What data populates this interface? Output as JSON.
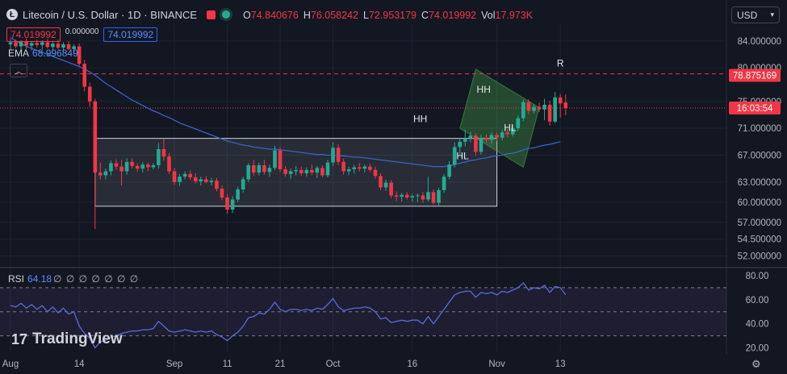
{
  "header": {
    "title": "Litecoin / U.S. Dollar · 1D · BINANCE",
    "ohlc": [
      {
        "key": "O",
        "value": "74.840676"
      },
      {
        "key": "H",
        "value": "76.058242"
      },
      {
        "key": "L",
        "value": "72.953179"
      },
      {
        "key": "C",
        "value": "74.019992"
      },
      {
        "key": "Vol",
        "value": "17.973K"
      }
    ],
    "bid": "74.019992",
    "spread": "0.000000",
    "ask": "74.019992"
  },
  "ema": {
    "label": "EMA",
    "value": "68.996849"
  },
  "rsi": {
    "label": "RSI",
    "value": "64.18",
    "nulls": "∅ ∅ ∅ ∅ ∅ ∅ ∅"
  },
  "currency": "USD",
  "brand": "TradingView",
  "colors": {
    "up": "#22ab94",
    "down": "#f23645",
    "ema": "#3a62c9",
    "rsi": "#5b6bd6",
    "background": "#131722"
  },
  "chart_data": {
    "type": "candlestick",
    "symbol": "LTCUSD",
    "ylim": [
      50.5,
      86.5
    ],
    "y_ticks": [
      "84.000000",
      "80.000000",
      "75.000000",
      "71.000000",
      "67.000000",
      "63.000000",
      "60.000000",
      "57.000000",
      "54.500000",
      "52.000000"
    ],
    "x_ticks": [
      {
        "label": "Aug",
        "index": 0
      },
      {
        "label": "14",
        "index": 13
      },
      {
        "label": "Sep",
        "index": 31
      },
      {
        "label": "11",
        "index": 41
      },
      {
        "label": "21",
        "index": 51
      },
      {
        "label": "Oct",
        "index": 61
      },
      {
        "label": "16",
        "index": 76
      },
      {
        "label": "Nov",
        "index": 92
      },
      {
        "label": "13",
        "index": 104
      }
    ],
    "candles": [
      {
        "o": 83.5,
        "h": 84.3,
        "l": 82.6,
        "c": 83.8
      },
      {
        "o": 83.8,
        "h": 84.2,
        "l": 82.9,
        "c": 83.2
      },
      {
        "o": 83.2,
        "h": 84.1,
        "l": 82.7,
        "c": 83.9
      },
      {
        "o": 83.9,
        "h": 84.4,
        "l": 82.8,
        "c": 83.3
      },
      {
        "o": 83.3,
        "h": 84.0,
        "l": 82.6,
        "c": 83.7
      },
      {
        "o": 83.7,
        "h": 84.2,
        "l": 83.0,
        "c": 83.4
      },
      {
        "o": 83.4,
        "h": 84.1,
        "l": 82.7,
        "c": 83.8
      },
      {
        "o": 83.8,
        "h": 84.3,
        "l": 82.9,
        "c": 83.1
      },
      {
        "o": 83.1,
        "h": 83.9,
        "l": 82.5,
        "c": 83.6
      },
      {
        "o": 83.6,
        "h": 84.2,
        "l": 82.8,
        "c": 83.0
      },
      {
        "o": 83.0,
        "h": 83.8,
        "l": 82.4,
        "c": 83.5
      },
      {
        "o": 83.5,
        "h": 84.0,
        "l": 82.6,
        "c": 82.8
      },
      {
        "o": 82.8,
        "h": 83.5,
        "l": 82.0,
        "c": 83.2
      },
      {
        "o": 83.2,
        "h": 83.6,
        "l": 80.3,
        "c": 80.6
      },
      {
        "o": 80.6,
        "h": 81.2,
        "l": 76.5,
        "c": 77.2
      },
      {
        "o": 77.2,
        "h": 77.8,
        "l": 74.2,
        "c": 75.0
      },
      {
        "o": 75.0,
        "h": 75.4,
        "l": 56.0,
        "c": 64.4
      },
      {
        "o": 64.4,
        "h": 65.9,
        "l": 63.4,
        "c": 64.0
      },
      {
        "o": 64.0,
        "h": 65.0,
        "l": 63.4,
        "c": 64.6
      },
      {
        "o": 64.6,
        "h": 66.2,
        "l": 64.0,
        "c": 65.8
      },
      {
        "o": 65.8,
        "h": 66.4,
        "l": 64.8,
        "c": 65.3
      },
      {
        "o": 65.3,
        "h": 66.3,
        "l": 62.5,
        "c": 64.6
      },
      {
        "o": 64.6,
        "h": 66.5,
        "l": 64.1,
        "c": 66.0
      },
      {
        "o": 66.0,
        "h": 66.5,
        "l": 65.0,
        "c": 65.4
      },
      {
        "o": 65.4,
        "h": 65.8,
        "l": 64.5,
        "c": 65.0
      },
      {
        "o": 65.0,
        "h": 66.0,
        "l": 64.4,
        "c": 65.6
      },
      {
        "o": 65.6,
        "h": 65.9,
        "l": 64.6,
        "c": 65.2
      },
      {
        "o": 65.2,
        "h": 65.8,
        "l": 64.9,
        "c": 65.5
      },
      {
        "o": 65.5,
        "h": 68.8,
        "l": 65.0,
        "c": 67.9
      },
      {
        "o": 67.9,
        "h": 69.4,
        "l": 66.2,
        "c": 66.8
      },
      {
        "o": 66.8,
        "h": 67.3,
        "l": 64.2,
        "c": 64.6
      },
      {
        "o": 64.6,
        "h": 65.1,
        "l": 62.6,
        "c": 63.0
      },
      {
        "o": 63.0,
        "h": 64.2,
        "l": 62.4,
        "c": 63.8
      },
      {
        "o": 63.8,
        "h": 64.6,
        "l": 63.4,
        "c": 64.2
      },
      {
        "o": 64.2,
        "h": 64.7,
        "l": 63.3,
        "c": 63.7
      },
      {
        "o": 63.7,
        "h": 64.3,
        "l": 62.8,
        "c": 63.1
      },
      {
        "o": 63.1,
        "h": 63.8,
        "l": 62.5,
        "c": 63.4
      },
      {
        "o": 63.4,
        "h": 63.9,
        "l": 62.8,
        "c": 63.0
      },
      {
        "o": 63.0,
        "h": 63.6,
        "l": 62.5,
        "c": 63.2
      },
      {
        "o": 63.2,
        "h": 63.6,
        "l": 61.6,
        "c": 62.0
      },
      {
        "o": 62.0,
        "h": 62.5,
        "l": 60.3,
        "c": 60.7
      },
      {
        "o": 60.7,
        "h": 61.2,
        "l": 58.3,
        "c": 58.9
      },
      {
        "o": 58.9,
        "h": 60.9,
        "l": 58.4,
        "c": 60.4
      },
      {
        "o": 60.4,
        "h": 62.3,
        "l": 60.0,
        "c": 61.9
      },
      {
        "o": 61.9,
        "h": 63.8,
        "l": 61.4,
        "c": 63.4
      },
      {
        "o": 63.4,
        "h": 65.8,
        "l": 63.0,
        "c": 65.5
      },
      {
        "o": 65.5,
        "h": 66.3,
        "l": 63.9,
        "c": 64.4
      },
      {
        "o": 64.4,
        "h": 65.9,
        "l": 64.0,
        "c": 65.5
      },
      {
        "o": 65.5,
        "h": 66.3,
        "l": 64.1,
        "c": 64.5
      },
      {
        "o": 64.5,
        "h": 65.6,
        "l": 63.8,
        "c": 65.1
      },
      {
        "o": 65.1,
        "h": 68.4,
        "l": 64.8,
        "c": 67.7
      },
      {
        "o": 67.7,
        "h": 68.2,
        "l": 64.5,
        "c": 64.9
      },
      {
        "o": 64.9,
        "h": 65.4,
        "l": 63.8,
        "c": 64.2
      },
      {
        "o": 64.2,
        "h": 65.0,
        "l": 63.5,
        "c": 64.6
      },
      {
        "o": 64.6,
        "h": 65.4,
        "l": 64.0,
        "c": 64.8
      },
      {
        "o": 64.8,
        "h": 65.3,
        "l": 63.9,
        "c": 64.3
      },
      {
        "o": 64.3,
        "h": 65.2,
        "l": 63.8,
        "c": 64.8
      },
      {
        "o": 64.8,
        "h": 65.6,
        "l": 64.0,
        "c": 64.4
      },
      {
        "o": 64.4,
        "h": 65.4,
        "l": 63.6,
        "c": 65.1
      },
      {
        "o": 65.1,
        "h": 65.5,
        "l": 63.7,
        "c": 64.0
      },
      {
        "o": 64.0,
        "h": 66.3,
        "l": 63.7,
        "c": 65.9
      },
      {
        "o": 65.9,
        "h": 68.9,
        "l": 65.4,
        "c": 68.1
      },
      {
        "o": 68.1,
        "h": 68.6,
        "l": 65.5,
        "c": 66.0
      },
      {
        "o": 66.0,
        "h": 66.5,
        "l": 64.1,
        "c": 64.6
      },
      {
        "o": 64.6,
        "h": 65.3,
        "l": 64.0,
        "c": 64.9
      },
      {
        "o": 64.9,
        "h": 65.5,
        "l": 64.3,
        "c": 65.2
      },
      {
        "o": 65.2,
        "h": 65.8,
        "l": 64.6,
        "c": 65.0
      },
      {
        "o": 65.0,
        "h": 65.6,
        "l": 64.4,
        "c": 65.3
      },
      {
        "o": 65.3,
        "h": 65.7,
        "l": 64.5,
        "c": 64.8
      },
      {
        "o": 64.8,
        "h": 65.3,
        "l": 63.5,
        "c": 63.9
      },
      {
        "o": 63.9,
        "h": 64.3,
        "l": 61.8,
        "c": 62.2
      },
      {
        "o": 62.2,
        "h": 63.4,
        "l": 61.7,
        "c": 62.9
      },
      {
        "o": 62.9,
        "h": 63.3,
        "l": 60.6,
        "c": 61.0
      },
      {
        "o": 61.0,
        "h": 61.6,
        "l": 60.2,
        "c": 60.8
      },
      {
        "o": 60.8,
        "h": 61.4,
        "l": 60.1,
        "c": 61.1
      },
      {
        "o": 61.1,
        "h": 61.5,
        "l": 60.4,
        "c": 60.7
      },
      {
        "o": 60.7,
        "h": 61.2,
        "l": 60.1,
        "c": 60.9
      },
      {
        "o": 60.9,
        "h": 61.3,
        "l": 60.0,
        "c": 61.0
      },
      {
        "o": 61.0,
        "h": 61.5,
        "l": 59.9,
        "c": 60.4
      },
      {
        "o": 60.4,
        "h": 63.8,
        "l": 60.1,
        "c": 61.5
      },
      {
        "o": 61.5,
        "h": 61.9,
        "l": 59.6,
        "c": 59.9
      },
      {
        "o": 59.9,
        "h": 62.1,
        "l": 59.5,
        "c": 61.8
      },
      {
        "o": 61.8,
        "h": 64.2,
        "l": 61.4,
        "c": 63.8
      },
      {
        "o": 63.8,
        "h": 66.1,
        "l": 63.4,
        "c": 65.6
      },
      {
        "o": 65.6,
        "h": 68.9,
        "l": 65.2,
        "c": 68.2
      },
      {
        "o": 68.2,
        "h": 69.6,
        "l": 67.0,
        "c": 69.0
      },
      {
        "o": 69.0,
        "h": 70.8,
        "l": 68.3,
        "c": 69.5
      },
      {
        "o": 69.5,
        "h": 70.5,
        "l": 68.9,
        "c": 69.9
      },
      {
        "o": 69.9,
        "h": 70.3,
        "l": 66.9,
        "c": 67.5
      },
      {
        "o": 67.5,
        "h": 70.0,
        "l": 67.1,
        "c": 69.6
      },
      {
        "o": 69.6,
        "h": 70.1,
        "l": 68.8,
        "c": 69.3
      },
      {
        "o": 69.3,
        "h": 70.4,
        "l": 68.7,
        "c": 70.0
      },
      {
        "o": 70.0,
        "h": 70.4,
        "l": 69.1,
        "c": 69.6
      },
      {
        "o": 69.6,
        "h": 70.8,
        "l": 69.2,
        "c": 70.4
      },
      {
        "o": 70.4,
        "h": 70.9,
        "l": 69.7,
        "c": 70.1
      },
      {
        "o": 70.1,
        "h": 71.4,
        "l": 69.8,
        "c": 71.0
      },
      {
        "o": 71.0,
        "h": 72.9,
        "l": 70.6,
        "c": 72.5
      },
      {
        "o": 72.5,
        "h": 75.3,
        "l": 72.1,
        "c": 74.9
      },
      {
        "o": 74.9,
        "h": 75.3,
        "l": 73.1,
        "c": 73.6
      },
      {
        "o": 73.6,
        "h": 74.6,
        "l": 73.2,
        "c": 74.2
      },
      {
        "o": 74.2,
        "h": 74.8,
        "l": 73.4,
        "c": 73.8
      },
      {
        "o": 73.8,
        "h": 75.4,
        "l": 72.2,
        "c": 74.5
      },
      {
        "o": 74.5,
        "h": 75.1,
        "l": 71.4,
        "c": 72.0
      },
      {
        "o": 72.0,
        "h": 76.4,
        "l": 71.8,
        "c": 75.6
      },
      {
        "o": 75.6,
        "h": 76.1,
        "l": 72.6,
        "c": 74.7
      },
      {
        "o": 74.840676,
        "h": 76.058242,
        "l": 72.953179,
        "c": 74.019992
      }
    ],
    "ema": [
      84.5,
      84.0,
      83.6,
      83.2,
      82.9,
      82.6,
      82.3,
      82.0,
      81.7,
      81.4,
      81.1,
      80.8,
      80.5,
      80.2,
      79.8,
      79.4,
      78.9,
      78.3,
      77.7,
      77.2,
      76.7,
      76.2,
      75.7,
      75.2,
      74.8,
      74.4,
      74.0,
      73.6,
      73.3,
      72.9,
      72.6,
      72.2,
      71.8,
      71.5,
      71.2,
      70.9,
      70.6,
      70.3,
      70.0,
      69.7,
      69.4,
      69.1,
      68.9,
      68.7,
      68.5,
      68.4,
      68.2,
      68.1,
      68.0,
      67.9,
      67.9,
      67.8,
      67.7,
      67.6,
      67.5,
      67.4,
      67.3,
      67.2,
      67.1,
      67.1,
      67.0,
      67.0,
      66.9,
      66.9,
      66.8,
      66.7,
      66.7,
      66.6,
      66.5,
      66.4,
      66.3,
      66.2,
      66.1,
      66.0,
      65.9,
      65.8,
      65.7,
      65.6,
      65.5,
      65.4,
      65.3,
      65.3,
      65.3,
      65.4,
      65.6,
      65.8,
      66.0,
      66.2,
      66.3,
      66.5,
      66.6,
      66.8,
      66.9,
      67.0,
      67.2,
      67.3,
      67.5,
      67.8,
      68.0,
      68.1,
      68.3,
      68.5,
      68.6,
      68.8,
      68.996849
    ],
    "rsi": {
      "ylim": [
        17,
        84
      ],
      "y_ticks": [
        "80.00",
        "60.00",
        "40.00",
        "20.00"
      ],
      "levels": [
        70,
        50,
        30
      ],
      "values": [
        55,
        54,
        57,
        53,
        56,
        52,
        55,
        50,
        54,
        49,
        53,
        48,
        50,
        38,
        32,
        28,
        20,
        25,
        26,
        29,
        30,
        32,
        33,
        34,
        34,
        35,
        35,
        36,
        42,
        38,
        34,
        33,
        34,
        35,
        34,
        33,
        34,
        33,
        34,
        31,
        29,
        26,
        30,
        33,
        38,
        45,
        46,
        49,
        48,
        52,
        58,
        52,
        50,
        52,
        52,
        51,
        52,
        51,
        53,
        52,
        56,
        61,
        54,
        51,
        52,
        53,
        53,
        54,
        53,
        50,
        44,
        45,
        41,
        42,
        43,
        42,
        43,
        43,
        40,
        46,
        40,
        46,
        52,
        58,
        64,
        66,
        67,
        67,
        62,
        66,
        65,
        66,
        64,
        67,
        66,
        68,
        70,
        74,
        68,
        70,
        69,
        72,
        66,
        71,
        70,
        64.18
      ]
    },
    "annotations": [
      {
        "label": "R",
        "x": 104,
        "y": 80.2
      },
      {
        "label": "HH",
        "x": 77.5,
        "y": 71.9
      },
      {
        "label": "HH",
        "x": 89.5,
        "y": 76.3
      },
      {
        "label": "HL",
        "x": 85.5,
        "y": 66.4
      },
      {
        "label": "HL",
        "x": 94.5,
        "y": 70.6
      }
    ],
    "resistance": 79.1,
    "range_box": {
      "x0": 16,
      "x1": 92,
      "y0": 59.4,
      "y1": 69.5
    },
    "channel": [
      [
        85,
        71.0
      ],
      [
        88,
        79.8
      ],
      [
        100,
        74.1
      ],
      [
        97,
        65.2
      ]
    ],
    "price_labels": [
      {
        "value": "78.875169",
        "price": 78.875169
      },
      {
        "value": "16:03:54",
        "price": 74.019992
      }
    ]
  }
}
